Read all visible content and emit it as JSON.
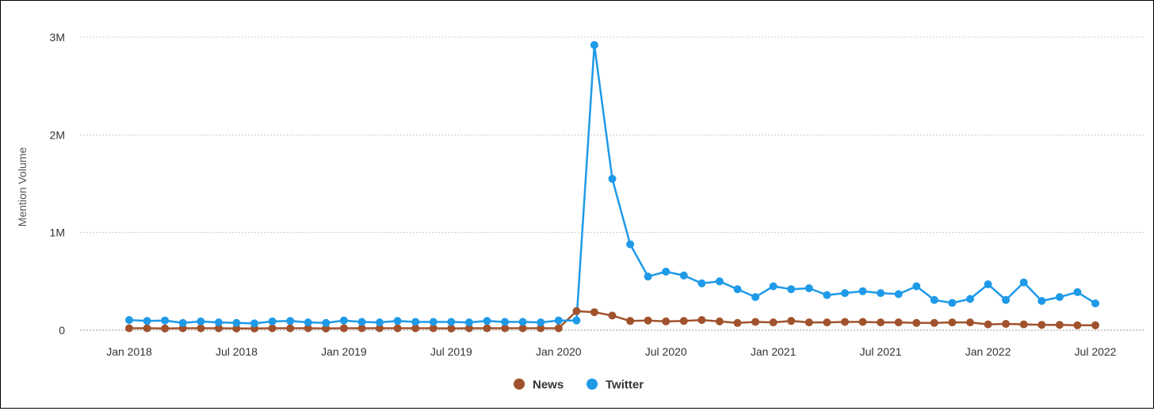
{
  "chart_data": {
    "type": "line",
    "title": "",
    "ylabel": "Mention Volume",
    "xlabel": "",
    "ylim": [
      0,
      3000000
    ],
    "yticks": [
      {
        "value": 0,
        "label": "0"
      },
      {
        "value": 1000000,
        "label": "1M"
      },
      {
        "value": 2000000,
        "label": "2M"
      },
      {
        "value": 3000000,
        "label": "3M"
      }
    ],
    "xticks": [
      {
        "date": "2018-01",
        "label": "Jan 2018"
      },
      {
        "date": "2018-07",
        "label": "Jul 2018"
      },
      {
        "date": "2019-01",
        "label": "Jan 2019"
      },
      {
        "date": "2019-07",
        "label": "Jul 2019"
      },
      {
        "date": "2020-01",
        "label": "Jan 2020"
      },
      {
        "date": "2020-07",
        "label": "Jul 2020"
      },
      {
        "date": "2021-01",
        "label": "Jan 2021"
      },
      {
        "date": "2021-07",
        "label": "Jul 2021"
      },
      {
        "date": "2022-01",
        "label": "Jan 2022"
      },
      {
        "date": "2022-07",
        "label": "Jul 2022"
      }
    ],
    "x": [
      "2018-01",
      "2018-02",
      "2018-03",
      "2018-04",
      "2018-05",
      "2018-06",
      "2018-07",
      "2018-08",
      "2018-09",
      "2018-10",
      "2018-11",
      "2018-12",
      "2019-01",
      "2019-02",
      "2019-03",
      "2019-04",
      "2019-05",
      "2019-06",
      "2019-07",
      "2019-08",
      "2019-09",
      "2019-10",
      "2019-11",
      "2019-12",
      "2020-01",
      "2020-02",
      "2020-03",
      "2020-04",
      "2020-05",
      "2020-06",
      "2020-07",
      "2020-08",
      "2020-09",
      "2020-10",
      "2020-11",
      "2020-12",
      "2021-01",
      "2021-02",
      "2021-03",
      "2021-04",
      "2021-05",
      "2021-06",
      "2021-07",
      "2021-08",
      "2021-09",
      "2021-10",
      "2021-11",
      "2021-12",
      "2022-01",
      "2022-02",
      "2022-03",
      "2022-04",
      "2022-05",
      "2022-06",
      "2022-07"
    ],
    "series": [
      {
        "name": "News",
        "color": "#a0522d",
        "values": [
          20000,
          20000,
          18000,
          20000,
          20000,
          20000,
          18000,
          18000,
          20000,
          20000,
          20000,
          18000,
          20000,
          20000,
          20000,
          20000,
          20000,
          20000,
          18000,
          20000,
          20000,
          20000,
          20000,
          20000,
          20000,
          195000,
          185000,
          150000,
          95000,
          100000,
          90000,
          95000,
          105000,
          90000,
          75000,
          85000,
          80000,
          95000,
          80000,
          80000,
          85000,
          85000,
          80000,
          80000,
          75000,
          75000,
          80000,
          80000,
          60000,
          65000,
          60000,
          55000,
          55000,
          50000,
          50000
        ]
      },
      {
        "name": "Twitter",
        "color": "#1e9ae8",
        "values": [
          105000,
          95000,
          100000,
          75000,
          90000,
          80000,
          75000,
          70000,
          90000,
          95000,
          80000,
          75000,
          100000,
          85000,
          80000,
          95000,
          85000,
          85000,
          85000,
          80000,
          95000,
          85000,
          85000,
          80000,
          100000,
          100000,
          2920000,
          1550000,
          880000,
          550000,
          600000,
          560000,
          480000,
          500000,
          420000,
          340000,
          450000,
          420000,
          430000,
          360000,
          380000,
          400000,
          380000,
          370000,
          450000,
          310000,
          280000,
          320000,
          470000,
          310000,
          490000,
          300000,
          340000,
          390000,
          275000
        ]
      }
    ],
    "legend": {
      "placement": "bottom-center"
    },
    "grid": {
      "y": true,
      "x": false
    }
  }
}
